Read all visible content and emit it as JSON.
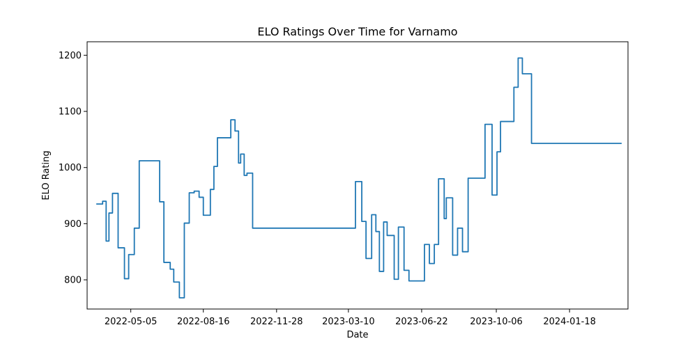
{
  "chart_data": {
    "type": "line",
    "title": "ELO Ratings Over Time for Varnamo",
    "xlabel": "Date",
    "ylabel": "ELO Rating",
    "xlim": [
      "2022-03-04",
      "2024-04-10"
    ],
    "ylim": [
      748,
      1224
    ],
    "x_ticks": [
      "2022-05-05",
      "2022-08-16",
      "2022-11-28",
      "2023-03-10",
      "2023-06-22",
      "2023-10-06",
      "2024-01-18"
    ],
    "y_ticks": [
      800,
      900,
      1000,
      1100,
      1200
    ],
    "grid": false,
    "series": [
      {
        "color": "#1f77b4",
        "step": true,
        "points": [
          [
            "2022-03-17",
            935
          ],
          [
            "2022-03-26",
            940
          ],
          [
            "2022-03-31",
            869
          ],
          [
            "2022-04-04",
            919
          ],
          [
            "2022-04-09",
            954
          ],
          [
            "2022-04-17",
            857
          ],
          [
            "2022-04-26",
            802
          ],
          [
            "2022-05-02",
            845
          ],
          [
            "2022-05-10",
            892
          ],
          [
            "2022-05-17",
            1012
          ],
          [
            "2022-06-13",
            1012
          ],
          [
            "2022-06-15",
            939
          ],
          [
            "2022-06-21",
            831
          ],
          [
            "2022-06-30",
            819
          ],
          [
            "2022-07-05",
            796
          ],
          [
            "2022-07-13",
            768
          ],
          [
            "2022-07-20",
            901
          ],
          [
            "2022-07-27",
            955
          ],
          [
            "2022-08-03",
            958
          ],
          [
            "2022-08-10",
            947
          ],
          [
            "2022-08-16",
            915
          ],
          [
            "2022-08-26",
            961
          ],
          [
            "2022-08-31",
            1002
          ],
          [
            "2022-09-05",
            1053
          ],
          [
            "2022-09-24",
            1085
          ],
          [
            "2022-09-30",
            1065
          ],
          [
            "2022-10-05",
            1008
          ],
          [
            "2022-10-08",
            1024
          ],
          [
            "2022-10-13",
            986
          ],
          [
            "2022-10-17",
            990
          ],
          [
            "2022-10-25",
            892
          ],
          [
            "2023-03-19",
            892
          ],
          [
            "2023-03-20",
            975
          ],
          [
            "2023-03-29",
            904
          ],
          [
            "2023-04-04",
            838
          ],
          [
            "2023-04-12",
            916
          ],
          [
            "2023-04-18",
            886
          ],
          [
            "2023-04-23",
            815
          ],
          [
            "2023-04-29",
            903
          ],
          [
            "2023-05-04",
            879
          ],
          [
            "2023-05-14",
            801
          ],
          [
            "2023-05-20",
            894
          ],
          [
            "2023-05-28",
            817
          ],
          [
            "2023-06-04",
            798
          ],
          [
            "2023-06-24",
            798
          ],
          [
            "2023-06-26",
            863
          ],
          [
            "2023-07-03",
            829
          ],
          [
            "2023-07-10",
            863
          ],
          [
            "2023-07-16",
            980
          ],
          [
            "2023-07-24",
            909
          ],
          [
            "2023-07-27",
            946
          ],
          [
            "2023-08-05",
            844
          ],
          [
            "2023-08-12",
            892
          ],
          [
            "2023-08-19",
            850
          ],
          [
            "2023-08-27",
            981
          ],
          [
            "2023-09-17",
            981
          ],
          [
            "2023-09-20",
            1077
          ],
          [
            "2023-09-30",
            951
          ],
          [
            "2023-10-07",
            1028
          ],
          [
            "2023-10-12",
            1082
          ],
          [
            "2023-10-28",
            1082
          ],
          [
            "2023-10-31",
            1143
          ],
          [
            "2023-11-06",
            1195
          ],
          [
            "2023-11-12",
            1167
          ],
          [
            "2023-11-24",
            1167
          ],
          [
            "2023-11-25",
            1043
          ],
          [
            "2024-04-01",
            1043
          ]
        ]
      }
    ]
  }
}
